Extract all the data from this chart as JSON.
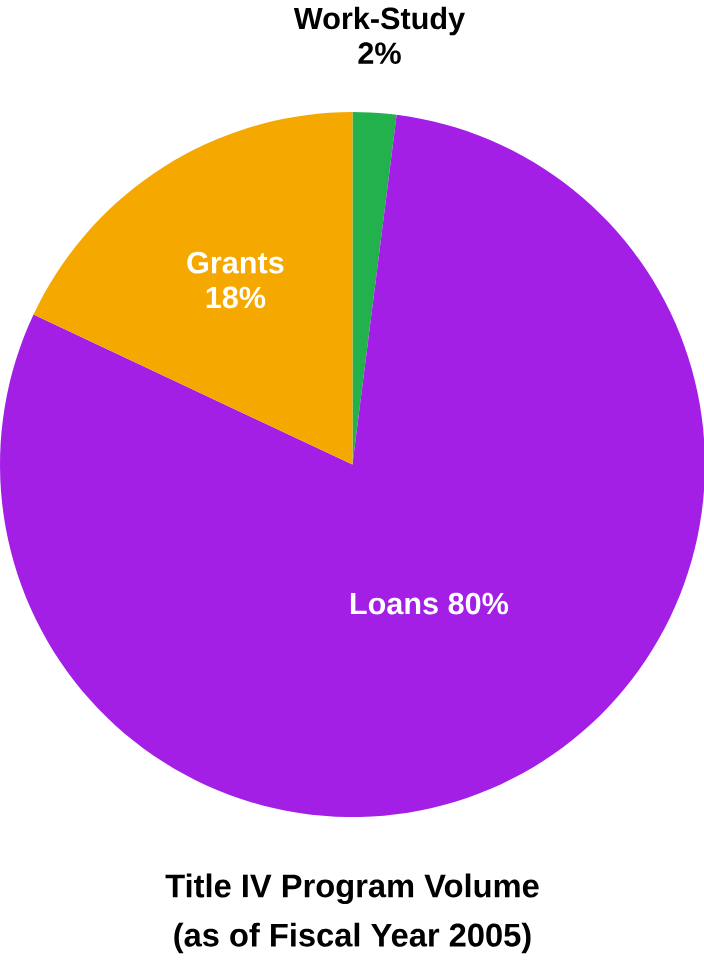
{
  "chart_data": {
    "type": "pie",
    "title": "Title IV Program Volume",
    "subtitle": "(as of Fiscal Year 2005)",
    "categories": [
      "Work-Study",
      "Loans",
      "Grants"
    ],
    "values": [
      2,
      80,
      18
    ],
    "value_labels": [
      "2%",
      "80%",
      "18%"
    ],
    "colors": [
      "#22b14c",
      "#a31fe6",
      "#f5a800"
    ]
  }
}
